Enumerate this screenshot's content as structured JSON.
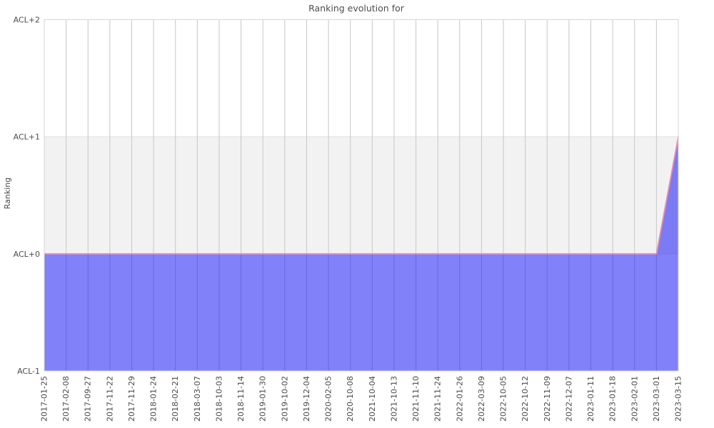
{
  "figure": {
    "background": "#ffffff"
  },
  "chart_data": {
    "type": "area",
    "title": "Ranking evolution for",
    "xlabel": "",
    "ylabel": "Ranking",
    "x": [
      "2017-01-25",
      "2017-02-08",
      "2017-09-27",
      "2017-11-22",
      "2017-11-29",
      "2018-01-24",
      "2018-02-21",
      "2018-03-07",
      "2018-10-03",
      "2018-11-14",
      "2019-01-30",
      "2019-10-02",
      "2019-12-04",
      "2020-02-05",
      "2020-10-08",
      "2021-10-04",
      "2021-10-13",
      "2021-11-10",
      "2021-11-24",
      "2022-01-26",
      "2022-03-09",
      "2022-10-05",
      "2022-10-12",
      "2022-11-09",
      "2022-12-07",
      "2023-01-11",
      "2023-01-18",
      "2023-02-01",
      "2023-03-01",
      "2023-03-15"
    ],
    "values": [
      0,
      0,
      0,
      0,
      0,
      0,
      0,
      0,
      0,
      0,
      0,
      0,
      0,
      0,
      0,
      0,
      0,
      0,
      0,
      0,
      0,
      0,
      0,
      0,
      0,
      0,
      0,
      0,
      0,
      1
    ],
    "yticks": [
      {
        "value": -1,
        "label": "ACL-1"
      },
      {
        "value": 0,
        "label": "ACL+0"
      },
      {
        "value": 1,
        "label": "ACL+1"
      },
      {
        "value": 2,
        "label": "ACL+2"
      }
    ],
    "ylim": [
      -1,
      2
    ],
    "grid": true,
    "legend": null,
    "bands": [
      {
        "from": 0,
        "to": 1,
        "color": "#f2f2f2"
      }
    ],
    "colors": {
      "area_fill": "rgba(30,30,245,0.56)",
      "line": "#ef8fba",
      "band": "#f2f2f2",
      "band_edge": "#e2e2e2",
      "grid_vertical": "#c7c7c7",
      "plot_border": "#d5d5d5",
      "tick_text": "#4a4a4a",
      "title_text": "#4d4d4d"
    }
  }
}
